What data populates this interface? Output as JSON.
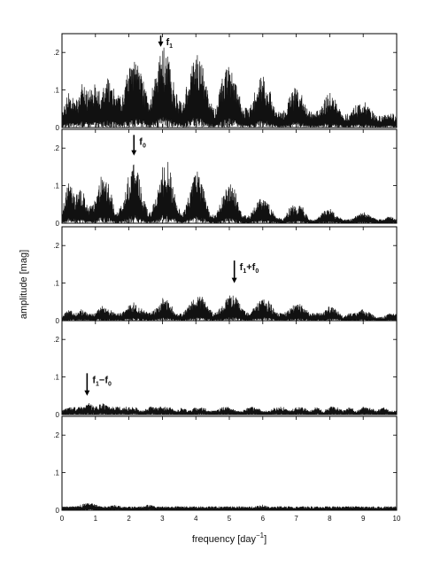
{
  "chart_data": {
    "type": "line",
    "xlabel": "frequency [day",
    "xlabel_exponent": "−1",
    "xlabel_close": "]",
    "ylabel": "amplitude [mag]",
    "xlim": [
      0,
      10
    ],
    "ylim": [
      0,
      0.25
    ],
    "x_ticks": [
      "0",
      "1",
      "2",
      "3",
      "4",
      "5",
      "6",
      "7",
      "8",
      "9",
      "10"
    ],
    "x_tick_values": [
      0,
      1,
      2,
      3,
      4,
      5,
      6,
      7,
      8,
      9,
      10
    ],
    "y_ticks": [
      "0",
      ".1",
      ".2"
    ],
    "y_tick_values": [
      0,
      0.1,
      0.2
    ],
    "grid": false,
    "panels": [
      {
        "annotation": {
          "main": "f",
          "sub": "1",
          "rest": "",
          "rest_sub": "",
          "x": 2.95,
          "arrow_top_y": 0.245,
          "arrow_tip_y": 0.215
        },
        "series": {
          "x": [
            0,
            0.2,
            0.4,
            0.6,
            0.8,
            1.0,
            1.2,
            1.4,
            1.6,
            1.8,
            2.0,
            2.2,
            2.4,
            2.6,
            2.8,
            3.0,
            3.2,
            3.4,
            3.6,
            3.8,
            4.0,
            4.2,
            4.4,
            4.6,
            4.8,
            5.0,
            5.2,
            5.4,
            5.6,
            5.8,
            6.0,
            6.2,
            6.4,
            6.6,
            6.8,
            7.0,
            7.2,
            7.4,
            7.6,
            7.8,
            8.0,
            8.2,
            8.4,
            8.6,
            8.8,
            9.0,
            9.2,
            9.4,
            9.6,
            9.8,
            10.0
          ],
          "y": [
            0.05,
            0.09,
            0.07,
            0.11,
            0.09,
            0.12,
            0.1,
            0.13,
            0.09,
            0.08,
            0.15,
            0.17,
            0.13,
            0.08,
            0.13,
            0.21,
            0.18,
            0.09,
            0.06,
            0.14,
            0.2,
            0.16,
            0.07,
            0.05,
            0.13,
            0.17,
            0.12,
            0.05,
            0.05,
            0.1,
            0.14,
            0.1,
            0.04,
            0.04,
            0.08,
            0.11,
            0.08,
            0.04,
            0.04,
            0.07,
            0.09,
            0.07,
            0.03,
            0.04,
            0.06,
            0.07,
            0.05,
            0.03,
            0.03,
            0.04,
            0.03
          ]
        }
      },
      {
        "annotation": {
          "main": "f",
          "sub": "0",
          "rest": "",
          "rest_sub": "",
          "x": 2.15,
          "arrow_top_y": 0.235,
          "arrow_tip_y": 0.18
        },
        "series": {
          "x": [
            0,
            0.2,
            0.4,
            0.6,
            0.8,
            1.0,
            1.2,
            1.4,
            1.6,
            1.8,
            2.0,
            2.2,
            2.4,
            2.6,
            2.8,
            3.0,
            3.2,
            3.4,
            3.6,
            3.8,
            4.0,
            4.2,
            4.4,
            4.6,
            4.8,
            5.0,
            5.2,
            5.4,
            5.6,
            5.8,
            6.0,
            6.2,
            6.4,
            6.6,
            6.8,
            7.0,
            7.2,
            7.4,
            7.6,
            7.8,
            8.0,
            8.2,
            8.4,
            8.6,
            8.8,
            9.0,
            9.2,
            9.4,
            9.6,
            9.8,
            10.0
          ],
          "y": [
            0.03,
            0.11,
            0.07,
            0.09,
            0.04,
            0.06,
            0.13,
            0.1,
            0.03,
            0.05,
            0.13,
            0.17,
            0.07,
            0.03,
            0.06,
            0.15,
            0.16,
            0.06,
            0.02,
            0.08,
            0.14,
            0.1,
            0.03,
            0.02,
            0.07,
            0.11,
            0.08,
            0.02,
            0.02,
            0.05,
            0.07,
            0.05,
            0.02,
            0.01,
            0.04,
            0.05,
            0.04,
            0.01,
            0.01,
            0.03,
            0.04,
            0.02,
            0.01,
            0.01,
            0.02,
            0.03,
            0.02,
            0.01,
            0.01,
            0.02,
            0.01
          ]
        }
      },
      {
        "annotation": {
          "main": "f",
          "sub": "1",
          "rest": "+f",
          "rest_sub": "0",
          "x": 5.15,
          "arrow_top_y": 0.16,
          "arrow_tip_y": 0.1
        },
        "series": {
          "x": [
            0,
            0.2,
            0.4,
            0.6,
            0.8,
            1.0,
            1.2,
            1.4,
            1.6,
            1.8,
            2.0,
            2.2,
            2.4,
            2.6,
            2.8,
            3.0,
            3.2,
            3.4,
            3.6,
            3.8,
            4.0,
            4.2,
            4.4,
            4.6,
            4.8,
            5.0,
            5.2,
            5.4,
            5.6,
            5.8,
            6.0,
            6.2,
            6.4,
            6.6,
            6.8,
            7.0,
            7.2,
            7.4,
            7.6,
            7.8,
            8.0,
            8.2,
            8.4,
            8.6,
            8.8,
            9.0,
            9.2,
            9.4,
            9.6,
            9.8,
            10.0
          ],
          "y": [
            0.01,
            0.03,
            0.02,
            0.03,
            0.02,
            0.02,
            0.04,
            0.03,
            0.02,
            0.02,
            0.04,
            0.05,
            0.03,
            0.02,
            0.03,
            0.06,
            0.05,
            0.02,
            0.02,
            0.04,
            0.07,
            0.06,
            0.03,
            0.02,
            0.04,
            0.07,
            0.06,
            0.03,
            0.02,
            0.04,
            0.06,
            0.05,
            0.02,
            0.02,
            0.03,
            0.05,
            0.04,
            0.02,
            0.02,
            0.02,
            0.04,
            0.03,
            0.01,
            0.02,
            0.02,
            0.03,
            0.02,
            0.01,
            0.01,
            0.02,
            0.02
          ]
        }
      },
      {
        "annotation": {
          "main": "f",
          "sub": "1",
          "rest": "−f",
          "rest_sub": "0",
          "x": 0.75,
          "arrow_top_y": 0.11,
          "arrow_tip_y": 0.05
        },
        "series": {
          "x": [
            0,
            0.2,
            0.4,
            0.6,
            0.8,
            1.0,
            1.2,
            1.4,
            1.6,
            1.8,
            2.0,
            2.2,
            2.4,
            2.6,
            2.8,
            3.0,
            3.2,
            3.4,
            3.6,
            3.8,
            4.0,
            4.2,
            4.4,
            4.6,
            4.8,
            5.0,
            5.2,
            5.4,
            5.6,
            5.8,
            6.0,
            6.2,
            6.4,
            6.6,
            6.8,
            7.0,
            7.2,
            7.4,
            7.6,
            7.8,
            8.0,
            8.2,
            8.4,
            8.6,
            8.8,
            9.0,
            9.2,
            9.4,
            9.6,
            9.8,
            10.0
          ],
          "y": [
            0.01,
            0.02,
            0.02,
            0.02,
            0.03,
            0.02,
            0.03,
            0.02,
            0.02,
            0.02,
            0.02,
            0.02,
            0.01,
            0.02,
            0.02,
            0.02,
            0.02,
            0.01,
            0.02,
            0.01,
            0.02,
            0.02,
            0.01,
            0.01,
            0.02,
            0.02,
            0.01,
            0.01,
            0.02,
            0.02,
            0.01,
            0.01,
            0.02,
            0.02,
            0.01,
            0.02,
            0.02,
            0.01,
            0.02,
            0.01,
            0.02,
            0.02,
            0.01,
            0.02,
            0.01,
            0.02,
            0.02,
            0.01,
            0.02,
            0.01,
            0.01
          ]
        }
      },
      {
        "annotation": null,
        "series": {
          "x": [
            0,
            0.2,
            0.4,
            0.6,
            0.8,
            1.0,
            1.2,
            1.4,
            1.6,
            1.8,
            2.0,
            2.2,
            2.4,
            2.6,
            2.8,
            3.0,
            3.2,
            3.4,
            3.6,
            3.8,
            4.0,
            4.2,
            4.4,
            4.6,
            4.8,
            5.0,
            5.2,
            5.4,
            5.6,
            5.8,
            6.0,
            6.2,
            6.4,
            6.6,
            6.8,
            7.0,
            7.2,
            7.4,
            7.6,
            7.8,
            8.0,
            8.2,
            8.4,
            8.6,
            8.8,
            9.0,
            9.2,
            9.4,
            9.6,
            9.8,
            10.0
          ],
          "y": [
            0.01,
            0.01,
            0.01,
            0.015,
            0.02,
            0.015,
            0.01,
            0.01,
            0.015,
            0.01,
            0.01,
            0.01,
            0.01,
            0.015,
            0.01,
            0.01,
            0.01,
            0.01,
            0.01,
            0.01,
            0.01,
            0.01,
            0.01,
            0.01,
            0.01,
            0.01,
            0.01,
            0.01,
            0.01,
            0.01,
            0.015,
            0.01,
            0.01,
            0.01,
            0.01,
            0.01,
            0.01,
            0.01,
            0.01,
            0.01,
            0.01,
            0.01,
            0.01,
            0.01,
            0.01,
            0.01,
            0.01,
            0.01,
            0.01,
            0.01,
            0.01
          ]
        }
      }
    ]
  }
}
